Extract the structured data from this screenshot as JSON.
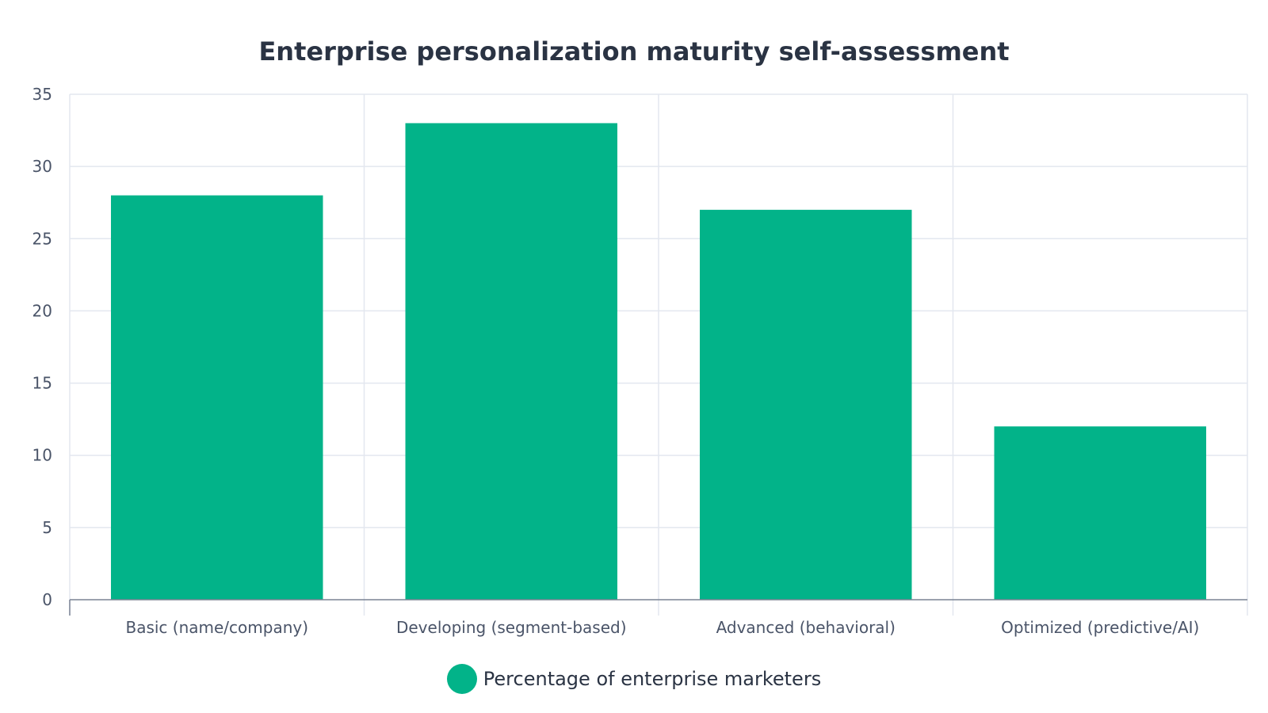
{
  "chart_data": {
    "type": "bar",
    "title": "Enterprise personalization maturity self-assessment",
    "categories": [
      "Basic (name/company)",
      "Developing (segment-based)",
      "Advanced (behavioral)",
      "Optimized (predictive/AI)"
    ],
    "series": [
      {
        "name": "Percentage of enterprise marketers",
        "values": [
          28,
          33,
          27,
          12
        ],
        "color": "#02b389"
      }
    ],
    "ylim": [
      0,
      35
    ],
    "yticks": [
      0,
      5,
      10,
      15,
      20,
      25,
      30,
      35
    ],
    "grid": true,
    "legend_position": "bottom-center"
  }
}
